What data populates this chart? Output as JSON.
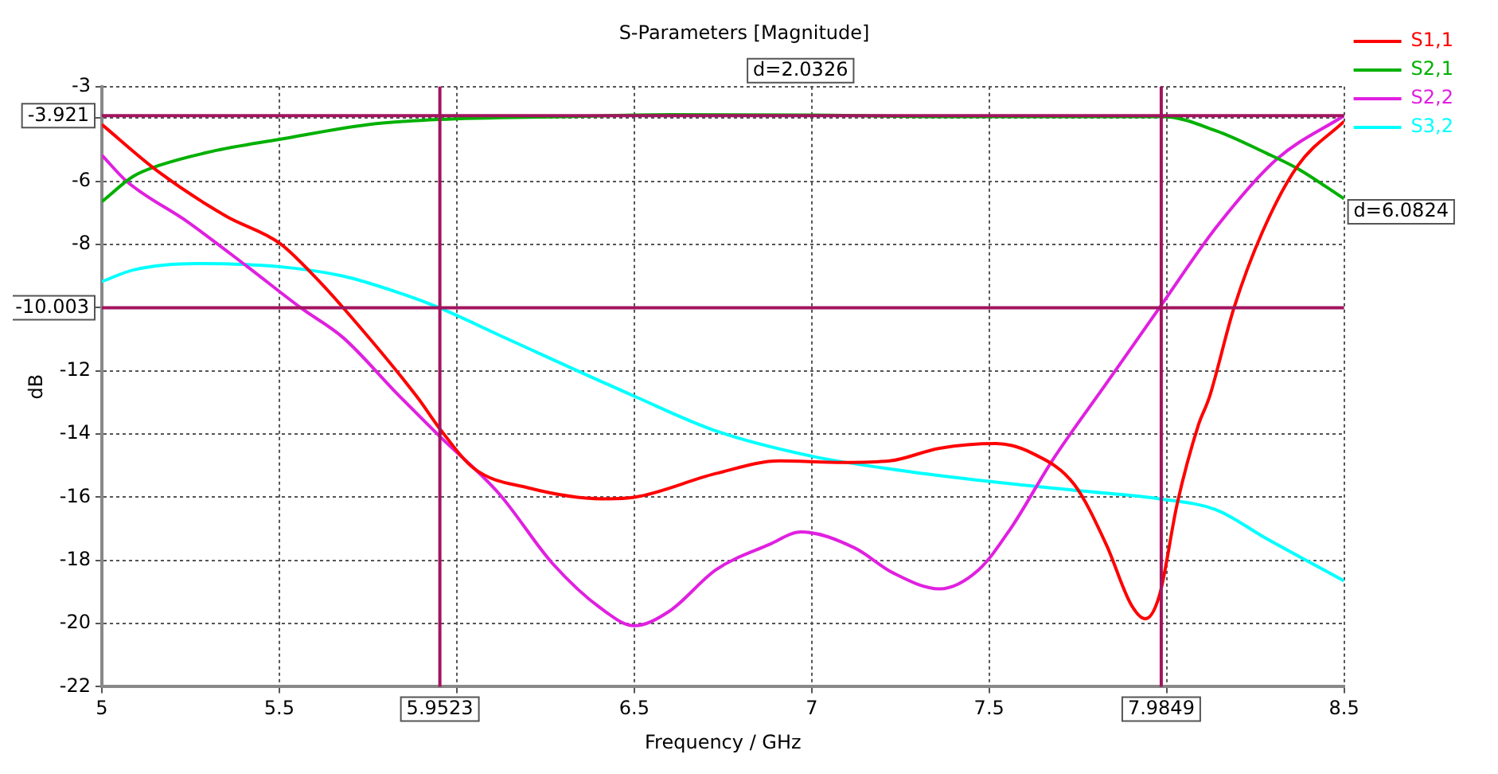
{
  "chart_data": {
    "type": "line",
    "title": "S-Parameters [Magnitude]",
    "xlabel": "Frequency / GHz",
    "ylabel": "dB",
    "xlim": [
      5,
      8.5
    ],
    "xticks": [
      5,
      5.5,
      {
        "value": 6,
        "label": null
      },
      6.5,
      7,
      7.5,
      {
        "value": 8,
        "label": null
      },
      8.5
    ],
    "ylim": [
      -22,
      -3
    ],
    "yticks": [
      -22,
      -20,
      -18,
      -16,
      -14,
      -12,
      {
        "value": -10,
        "label": null
      },
      -8,
      -6,
      {
        "value": -4,
        "label": null
      },
      -3
    ],
    "grid": true,
    "legend": "top right",
    "marker": "none",
    "line_style": "solid",
    "series": [
      {
        "name": "S1,1",
        "color": "#ff0000",
        "x": [
          5,
          5.16,
          5.35,
          5.5,
          5.59,
          5.68,
          5.89,
          5.95,
          6.05,
          6.2,
          6.41,
          6.5,
          6.73,
          6.91,
          7.09,
          7.22,
          7.36,
          7.52,
          7.62,
          7.74,
          7.83,
          7.9,
          7.94,
          7.98,
          8.03,
          8.09,
          8.12,
          8.19,
          8.27,
          8.37,
          8.5
        ],
        "values": [
          -4.2,
          -5.7,
          -7.1,
          -7.95,
          -8.9,
          -10,
          -12.85,
          -13.8,
          -15.1,
          -15.7,
          -16.05,
          -16,
          -15.25,
          -14.85,
          -14.9,
          -14.85,
          -14.45,
          -14.3,
          -14.6,
          -15.6,
          -17.5,
          -19.4,
          -19.85,
          -19.1,
          -16.2,
          -13.7,
          -12.85,
          -10,
          -7.6,
          -5.5,
          -4.1
        ]
      },
      {
        "name": "S2,1",
        "color": "#00b000",
        "x": [
          5,
          5.09,
          5.16,
          5.31,
          5.5,
          5.75,
          5.95,
          6.3,
          6.6,
          7,
          7.4,
          7.8,
          7.99,
          8.14,
          8.28,
          8.37,
          8.5
        ],
        "values": [
          -6.64,
          -5.83,
          -5.5,
          -5.05,
          -4.67,
          -4.2,
          -4.04,
          -3.95,
          -3.89,
          -3.9,
          -3.95,
          -3.95,
          -3.95,
          -4.4,
          -5.1,
          -5.6,
          -6.55
        ]
      },
      {
        "name": "S2,2",
        "color": "#e020e0",
        "x": [
          5,
          5.07,
          5.24,
          5.41,
          5.56,
          5.68,
          5.83,
          5.95,
          6.12,
          6.27,
          6.41,
          6.5,
          6.6,
          6.73,
          6.88,
          6.97,
          7.12,
          7.23,
          7.36,
          7.47,
          7.56,
          7.68,
          7.83,
          7.98,
          8.14,
          8.31,
          8.5
        ],
        "values": [
          -5.17,
          -6,
          -7.27,
          -8.7,
          -10,
          -10.95,
          -12.7,
          -14.05,
          -15.9,
          -18.1,
          -19.55,
          -20.07,
          -19.6,
          -18.3,
          -17.5,
          -17.1,
          -17.6,
          -18.4,
          -18.9,
          -18.3,
          -17,
          -14.8,
          -12.4,
          -10,
          -7.45,
          -5.3,
          -3.92
        ]
      },
      {
        "name": "S3,2",
        "color": "#00ffff",
        "x": [
          5,
          5.09,
          5.27,
          5.5,
          5.68,
          5.83,
          5.95,
          6.12,
          6.5,
          6.73,
          7,
          7.25,
          7.5,
          7.76,
          7.98,
          8.14,
          8.28,
          8.5
        ],
        "values": [
          -9.17,
          -8.8,
          -8.6,
          -8.7,
          -9,
          -9.5,
          -10,
          -10.87,
          -12.8,
          -13.9,
          -14.7,
          -15.15,
          -15.5,
          -15.8,
          -16.05,
          -16.4,
          -17.3,
          -18.65
        ]
      }
    ],
    "ref_lines": [
      {
        "axis": "y",
        "value": -3.921,
        "label": "-3.921",
        "color": "#a3145f"
      },
      {
        "axis": "y",
        "value": -10.003,
        "label": "-10.003",
        "color": "#a3145f"
      },
      {
        "axis": "x",
        "value": 5.9523,
        "label": "5.9523",
        "color": "#a3145f"
      },
      {
        "axis": "x",
        "value": 7.9849,
        "label": "7.9849",
        "color": "#a3145f"
      }
    ],
    "annotations": [
      "d=2.0326",
      "d=6.0824"
    ]
  }
}
